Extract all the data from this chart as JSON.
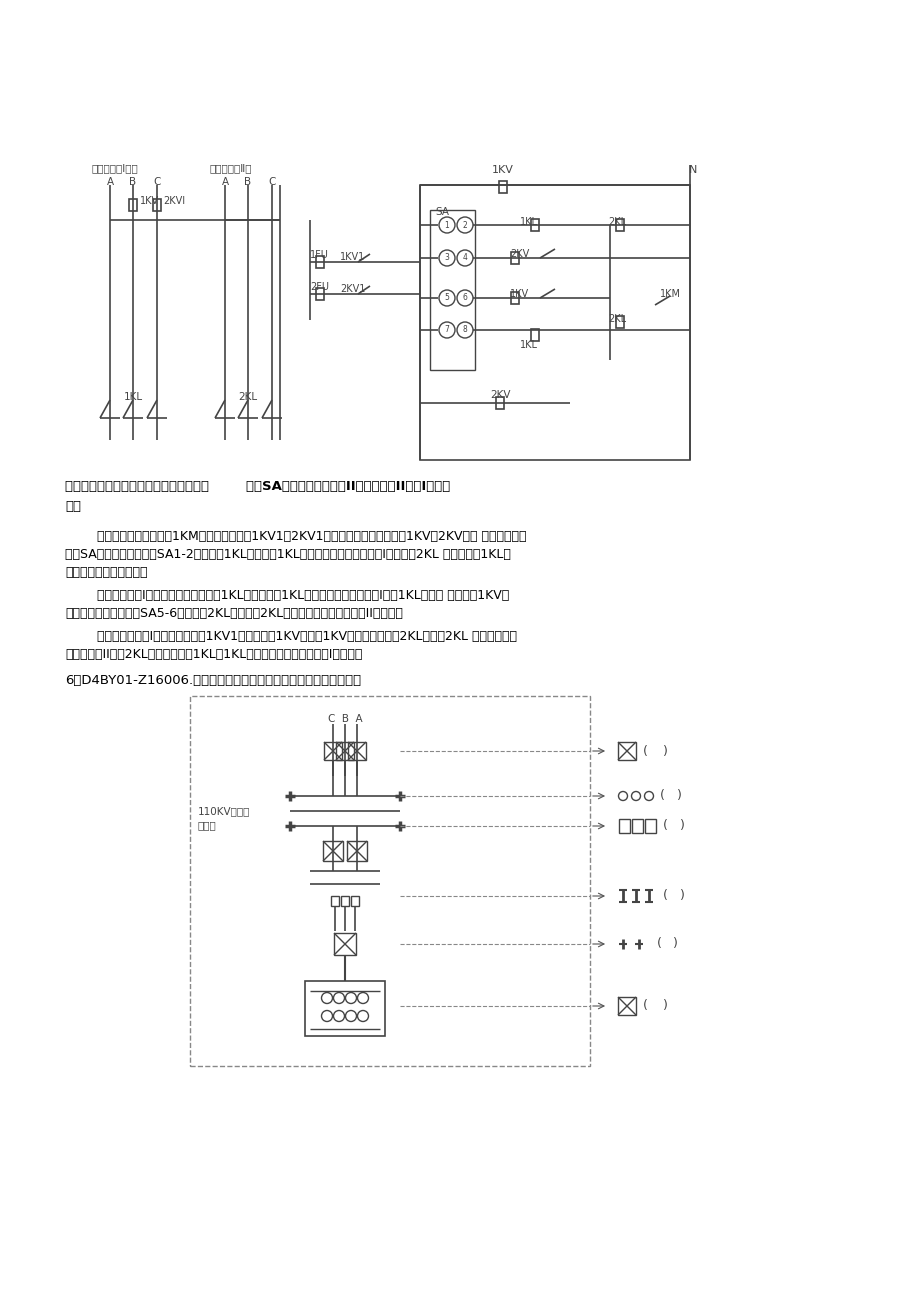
{
  "bg_color": "#ffffff",
  "dc": "#444444",
  "answer_bold": "答：如图所示，变压器在投入电网之前，        先将SA开关手柄置于工作II备用，或者II工作I备用位",
  "answer_bold2": "置。",
  "para1_lines": [
    "        当变压器投入电网时，1KM常闭触点接通；1KV1、2KV1带电常开触点接通，起动1KV、2KV使常 闭触点断开；",
    "假定SA开关手柄在位，则SA1-2接通起动1KL接触器，1KL主触头闭合由工作电源（I）供电。2KL 线圈回路被1KL常",
    "闭触点断开（闭锁了）。"
  ],
  "para2_lines": [
    "        当工作电源（I）由于某种原因停电，1KL线圈断电，1KL主触头断开工作电源（I），1KL常闭触 点接通，1KV断",
    "电常闭触点接通，再经SA5-6触点动作2KL接触器，2KL主触头闭合由工作电源（II）供电。"
  ],
  "para3_lines": [
    "        假如工作电源（I）恢复供电时，1KV1动作起动，1KV动作，1KV常闭触点断开使2KL断电，2KL 的主触头断开",
    "工作电源（II），2KL常闭触点起动1KL，1KL主触头闭合由工作电源（I）供电。"
  ],
  "question6": "6、D4BY01-Z16006.在括号内给出平面图中符号所代表的电气设备：",
  "label_110kv_1": "110KV屋外配",
  "label_110kv_2": "电装置",
  "gzdyI": "工作电源（Ⅰ）～",
  "gzdyII": "工作电源（Ⅱ）"
}
